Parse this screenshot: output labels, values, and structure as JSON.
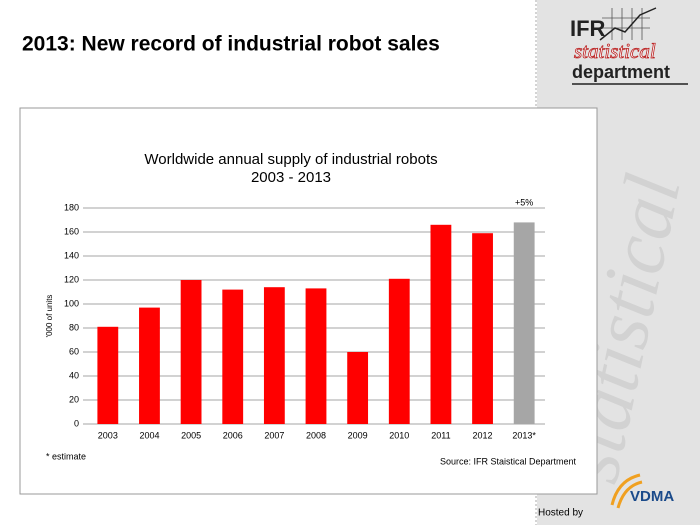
{
  "slide": {
    "title": "2013: New record of industrial robot sales",
    "logo_top": "IFR",
    "logo_middle": "statistical",
    "logo_bottom": "department",
    "watermark": "statistical",
    "hosted_by": "Hosted by",
    "host": "VDMA"
  },
  "chart_data": {
    "type": "bar",
    "title": "Worldwide annual supply of industrial robots",
    "subtitle": "2003 - 2013",
    "y_label": "'000 of units",
    "categories": [
      "2003",
      "2004",
      "2005",
      "2006",
      "2007",
      "2008",
      "2009",
      "2010",
      "2011",
      "2012",
      "2013*"
    ],
    "values": [
      81,
      97,
      120,
      112,
      114,
      113,
      60,
      121,
      166,
      159,
      168
    ],
    "colors": [
      "#ff0000",
      "#ff0000",
      "#ff0000",
      "#ff0000",
      "#ff0000",
      "#ff0000",
      "#ff0000",
      "#ff0000",
      "#ff0000",
      "#ff0000",
      "#a6a6a6"
    ],
    "ylim": [
      0,
      180
    ],
    "yticks": [
      0,
      20,
      40,
      60,
      80,
      100,
      120,
      140,
      160,
      180
    ],
    "grid": true,
    "annotation": "+5%",
    "footnote": "*  estimate",
    "source": "Source: IFR Staistical Department"
  }
}
